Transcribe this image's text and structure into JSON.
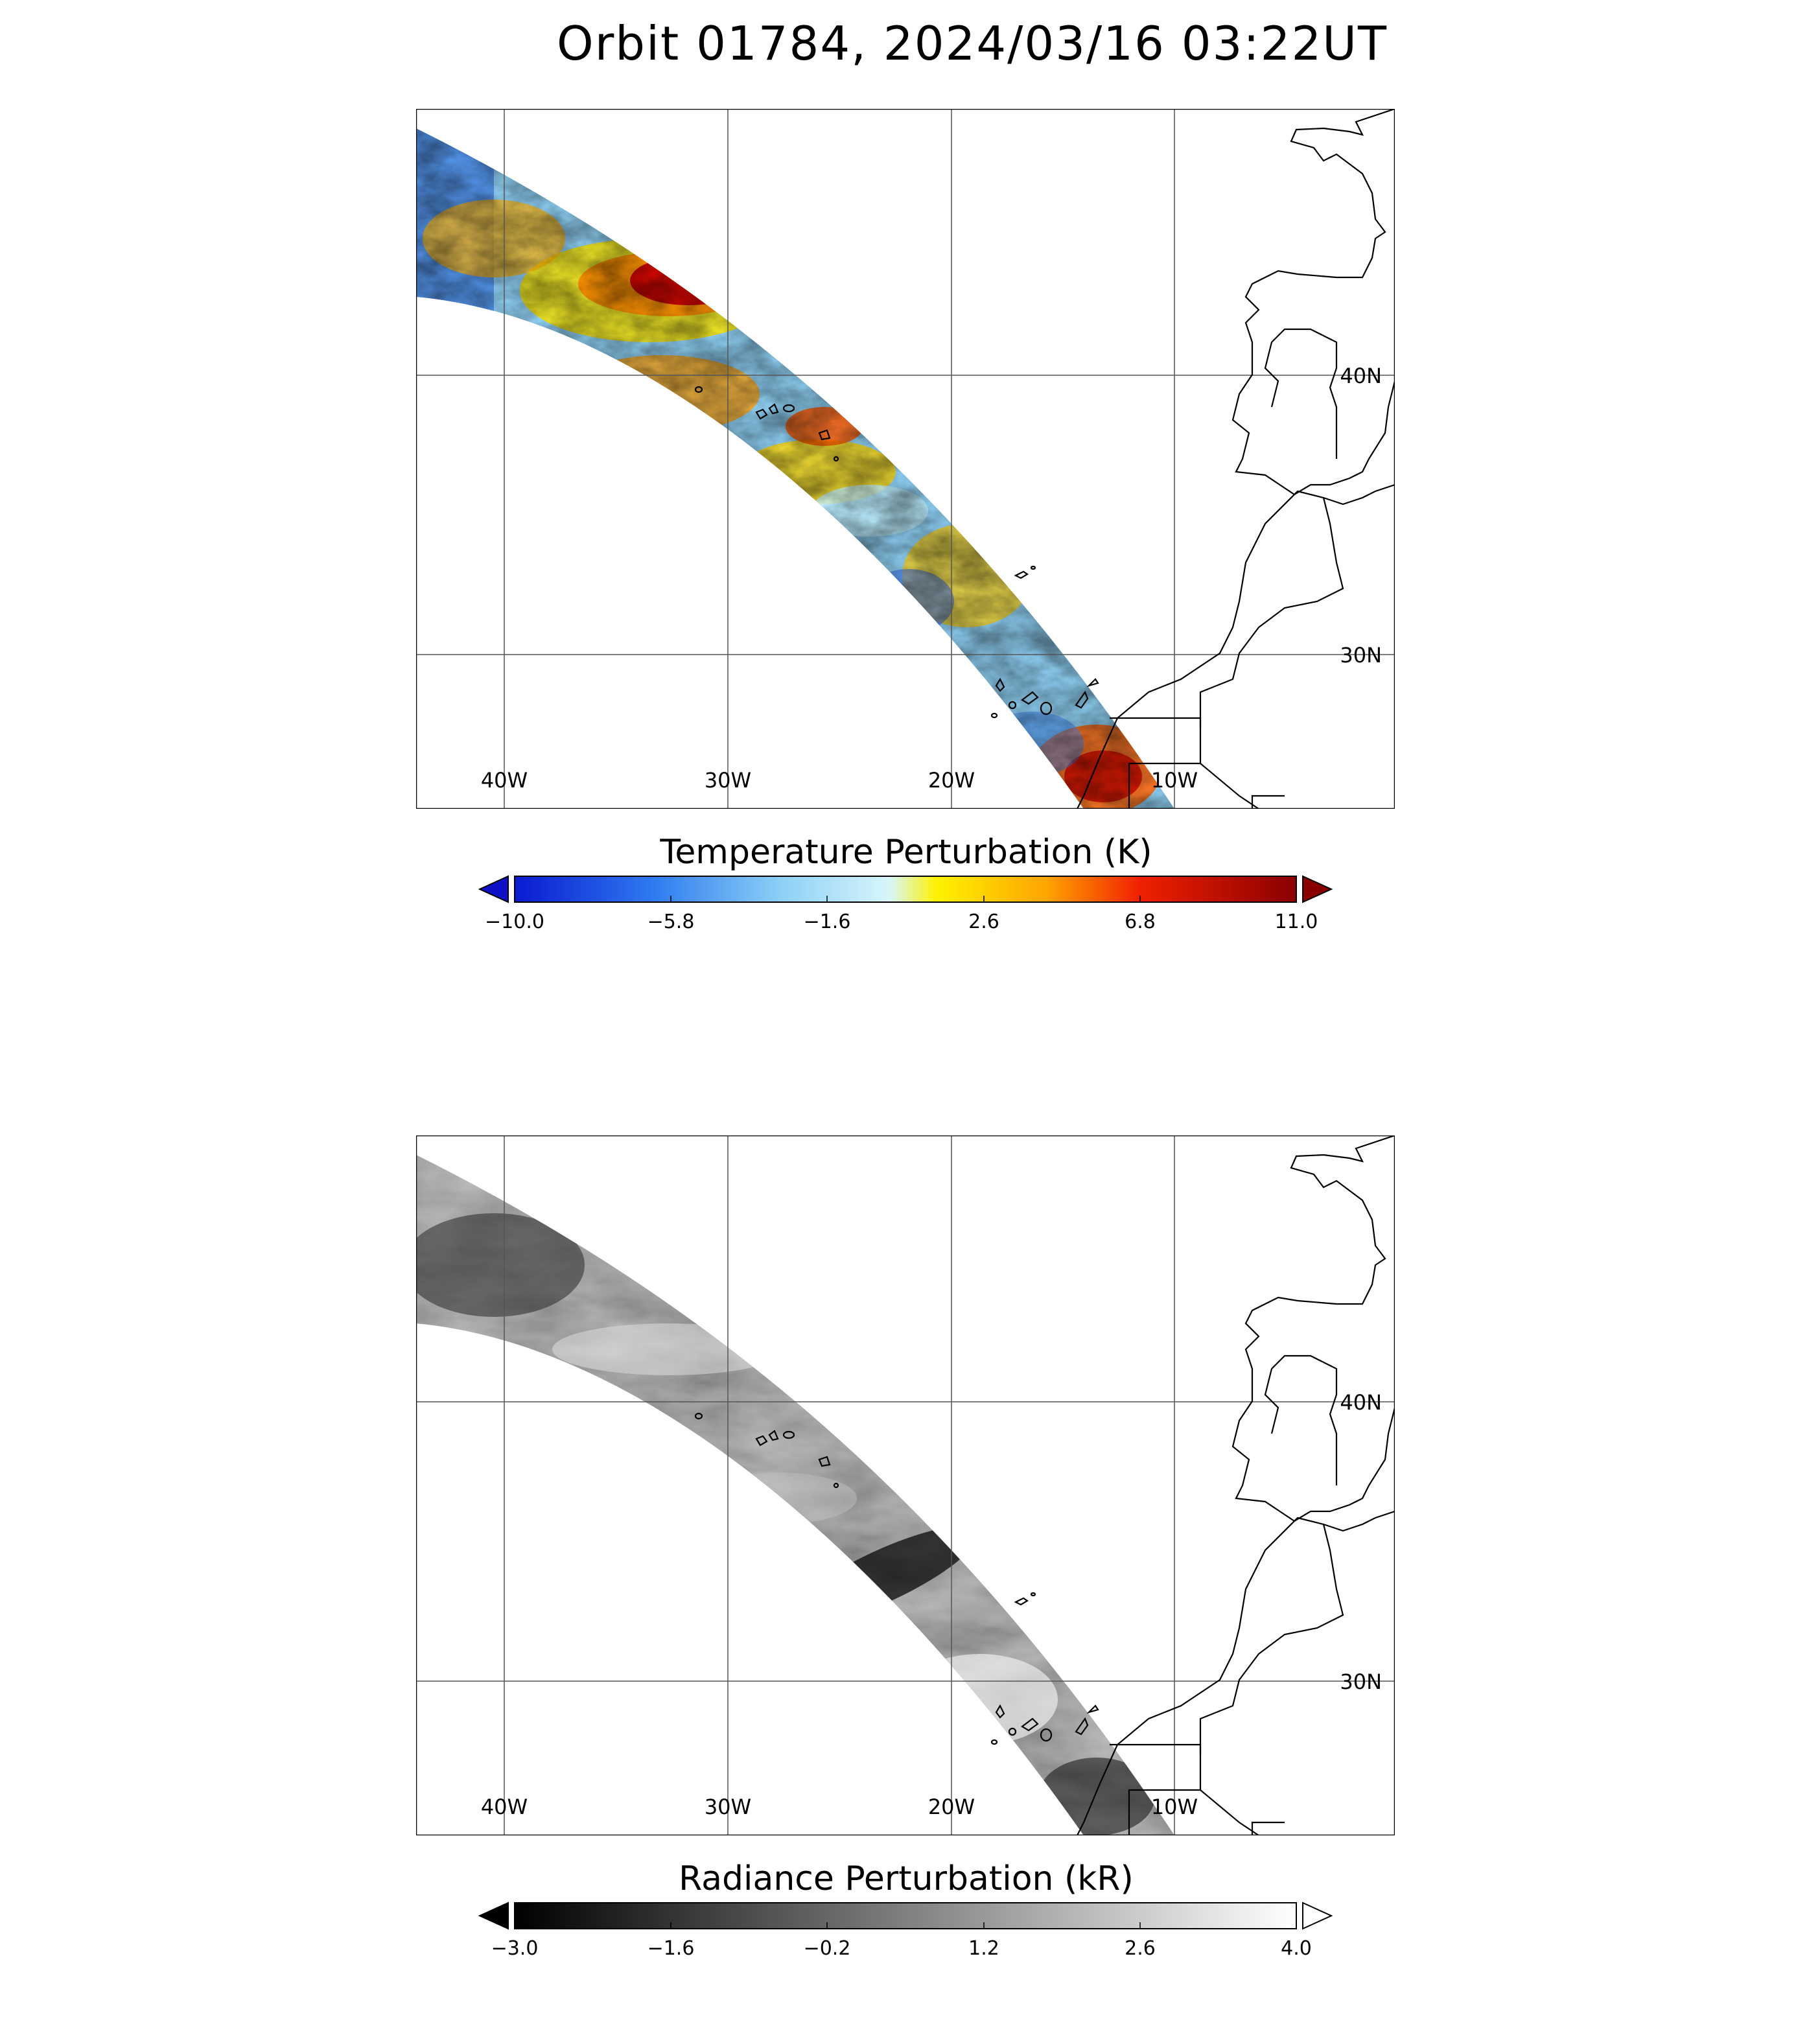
{
  "figure": {
    "title": "Orbit 01784, 2024/03/16 03:22UT"
  },
  "map": {
    "lon_labels": [
      "40W",
      "30W",
      "20W",
      "10W"
    ],
    "lat_labels": [
      "40N",
      "30N"
    ]
  },
  "panels": [
    {
      "id": "temperature",
      "colorbar_title": "Temperature Perturbation (K)",
      "colormap": "rainbow-blue-to-darkred",
      "colors": [
        "#1010c8",
        "#2a6cf0",
        "#7cc4f4",
        "#d4f4fa",
        "#fff200",
        "#ffa000",
        "#e82000",
        "#8a0000"
      ],
      "ticks": [
        "−10.0",
        "−5.8",
        "−1.6",
        "2.6",
        "6.8",
        "11.0"
      ]
    },
    {
      "id": "radiance",
      "colorbar_title": "Radiance Perturbation (kR)",
      "colormap": "grayscale",
      "colors": [
        "#000000",
        "#ffffff"
      ],
      "ticks": [
        "−3.0",
        "−1.6",
        "−0.2",
        "1.2",
        "2.6",
        "4.0"
      ]
    }
  ]
}
